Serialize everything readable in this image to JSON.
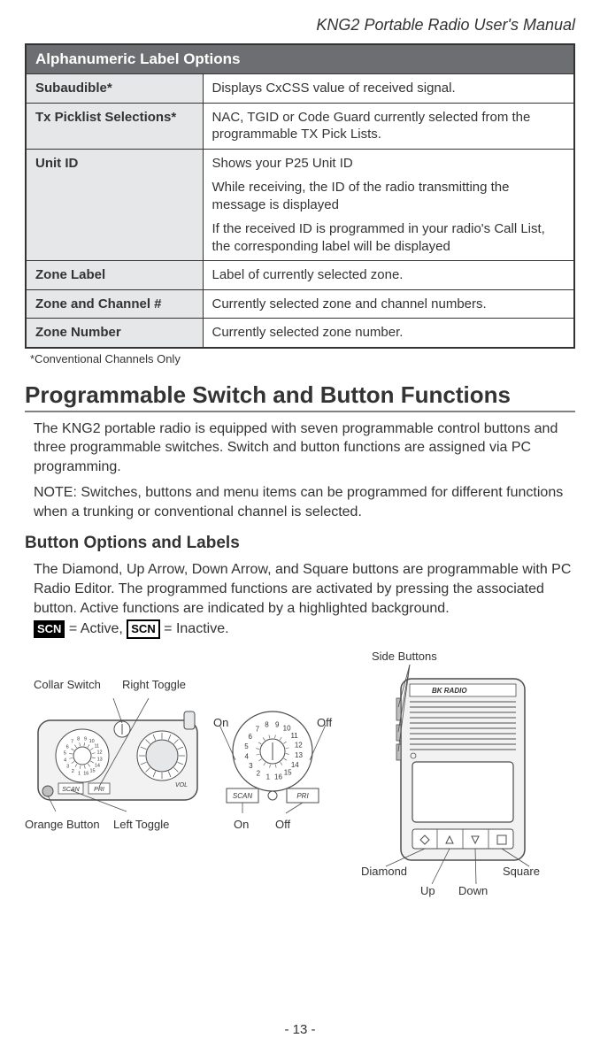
{
  "header": {
    "manual_title": "KNG2 Portable Radio User's Manual"
  },
  "table": {
    "banner": "Alphanumeric Label Options",
    "rows": {
      "subaudible": {
        "key": "Subaudible*",
        "val": "Displays CxCSS value of received signal."
      },
      "txpick": {
        "key": "Tx Picklist Selections*",
        "val": "NAC, TGID or Code Guard currently selected from the programmable TX Pick Lists."
      },
      "unitid": {
        "key": "Unit ID",
        "p1": "Shows your P25 Unit ID",
        "p2": "While receiving, the ID of the radio transmitting the message is displayed",
        "p3": "If the received ID is programmed in your radio's Call List, the corresponding label will be displayed"
      },
      "zonelabel": {
        "key": "Zone Label",
        "val": "Label of currently selected zone."
      },
      "zonechan": {
        "key": "Zone and Channel #",
        "val": "Currently selected zone and channel numbers."
      },
      "zonenum": {
        "key": "Zone Number",
        "val": "Currently selected zone number."
      }
    },
    "footnote": "*Conventional Channels Only"
  },
  "section": {
    "title": "Programmable Switch and Button Functions",
    "p1": "The KNG2 portable radio is equipped with seven programmable control buttons and three programmable switches. Switch and button functions are assigned via PC programming.",
    "p2": "NOTE: Switches, buttons and menu items can be programmed for different functions when a trunking or conventional channel is selected."
  },
  "subsection": {
    "title": "Button Options and Labels",
    "p1": "The Diamond, Up Arrow, Down Arrow, and Square buttons are programmable with PC Radio Editor. The programmed functions are activated by pressing the associated button. Active functions are indicated by a highlighted background.",
    "active_tag": "SCN",
    "active_text": " = Active, ",
    "inactive_tag": "SCN",
    "inactive_text": " = Inactive."
  },
  "diagram": {
    "labels": {
      "collar": "Collar Switch",
      "rtoggle": "Right Toggle",
      "orange": "Orange Button",
      "ltoggle": "Left Toggle",
      "on1": "On",
      "off1": "Off",
      "on2": "On",
      "off2": "Off",
      "side": "Side Buttons",
      "diamond": "Diamond",
      "square": "Square",
      "up": "Up",
      "down": "Down",
      "scan": "SCAN",
      "pri": "PRI",
      "vol": "VOL",
      "bk": "BK RADIO"
    },
    "dial_numbers": [
      "1",
      "2",
      "3",
      "4",
      "5",
      "6",
      "7",
      "8",
      "9",
      "10",
      "11",
      "12",
      "13",
      "14",
      "15",
      "16"
    ],
    "colors": {
      "stroke": "#4d4d4d",
      "fill_light": "#f2f2f2",
      "fill_dark": "#bfbfbf"
    }
  },
  "page": {
    "num": "- 13 -"
  }
}
